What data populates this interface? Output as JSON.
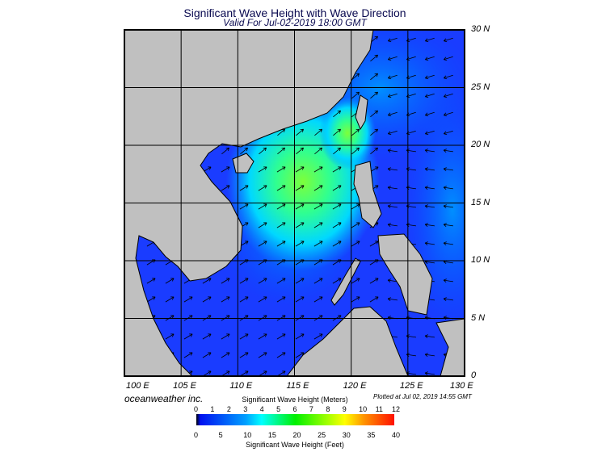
{
  "title": "Significant Wave Height with Wave Direction",
  "subtitle": "Valid For Jul-02-2019 18:00 GMT",
  "credit": "oceanweather inc.",
  "plotted": "Plotted at Jul 02, 2019 14:55 GMT",
  "map": {
    "lon_labels": [
      "100 E",
      "105 E",
      "110 E",
      "115 E",
      "120 E",
      "125 E",
      "130 E"
    ],
    "lat_labels": [
      "0",
      "5 N",
      "10 N",
      "15 N",
      "20 N",
      "25 N",
      "30 N"
    ],
    "colors": {
      "land": "#c0c0c0",
      "ocean_low": "#0a2aff",
      "ocean_mid": "#00c8ff",
      "ocean_high": "#40ff40"
    }
  },
  "colorbar": {
    "meters_title": "Significant Wave Height (Meters)",
    "feet_title": "Significant Wave Height (Feet)",
    "meters": [
      "0",
      "1",
      "2",
      "3",
      "4",
      "5",
      "6",
      "7",
      "8",
      "9",
      "10",
      "11",
      "12"
    ],
    "feet": [
      "0",
      "5",
      "10",
      "15",
      "20",
      "25",
      "30",
      "35",
      "40"
    ]
  }
}
